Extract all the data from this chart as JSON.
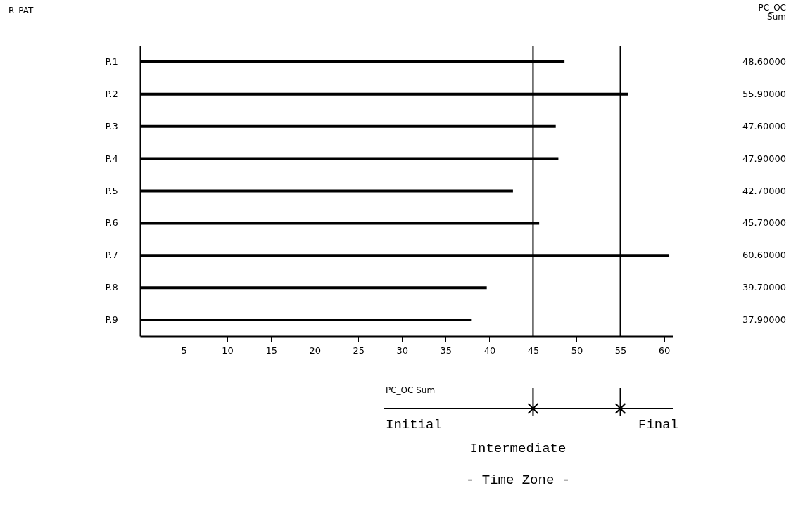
{
  "chart_data": {
    "type": "bar",
    "orientation": "horizontal",
    "categories": [
      "P.1",
      "P.2",
      "P.3",
      "P.4",
      "P.5",
      "P.6",
      "P.7",
      "P.8",
      "P.9"
    ],
    "values": [
      48.6,
      55.9,
      47.6,
      47.9,
      42.7,
      45.7,
      60.6,
      39.7,
      37.9
    ],
    "value_labels": [
      "48.60000",
      "55.90000",
      "47.60000",
      "47.90000",
      "42.70000",
      "45.70000",
      "60.60000",
      "39.70000",
      "37.90000"
    ],
    "color": "#000000",
    "xlim": [
      0,
      61
    ],
    "xticks": [
      5,
      10,
      15,
      20,
      25,
      30,
      35,
      40,
      45,
      50,
      55,
      60
    ],
    "grid": false,
    "ref_lines": [
      {
        "axis": "x",
        "value": 45
      },
      {
        "axis": "x",
        "value": 55
      }
    ],
    "annotations": [
      "R_PAT",
      "PC_OC Sum",
      "PC_OC Sum",
      "Initial",
      "Intermediate",
      "Final",
      "- Time Zone -"
    ]
  }
}
